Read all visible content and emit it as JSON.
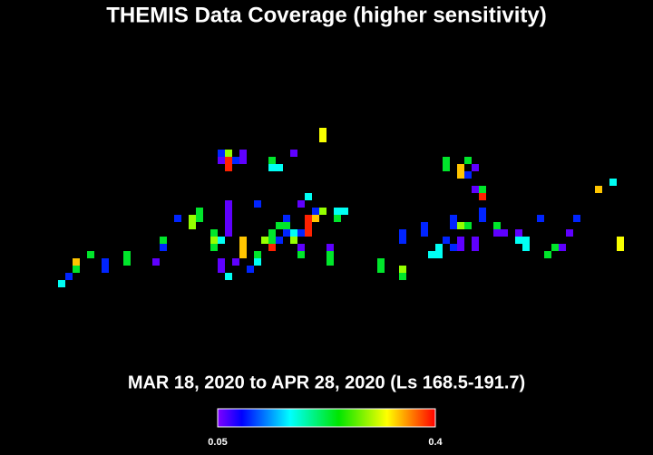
{
  "chart_data": {
    "type": "heatmap",
    "title": "THEMIS Data Coverage (higher sensitivity)",
    "subtitle": "MAR 18, 2020 to APR 28, 2020 (Ls 168.5-191.7)",
    "columns": [
      0,
      1,
      2,
      2,
      4,
      6,
      6,
      9,
      9,
      13,
      14,
      14,
      16,
      18,
      18,
      19,
      19,
      21,
      21,
      21,
      22,
      22,
      23,
      23,
      23,
      24,
      25,
      25,
      23,
      23,
      23,
      23,
      23,
      22,
      22,
      22,
      23,
      24,
      25,
      25,
      25,
      26,
      27,
      27,
      27,
      28,
      29,
      29,
      29,
      30,
      29,
      29,
      30,
      30,
      31,
      31,
      31,
      32,
      32,
      32,
      33,
      33,
      33,
      33,
      34,
      34,
      34,
      34,
      35,
      35,
      36,
      36,
      36,
      37,
      37,
      37,
      38,
      38,
      39,
      44,
      44,
      47,
      47,
      47,
      47,
      50,
      50,
      51,
      52,
      52,
      53,
      53,
      53,
      54,
      54,
      54,
      55,
      55,
      55,
      55,
      55,
      56,
      56,
      56,
      57,
      57,
      57,
      57,
      58,
      58,
      58,
      58,
      60,
      60,
      61,
      63,
      63,
      64,
      64,
      66,
      67,
      68,
      69,
      70,
      71,
      74,
      76,
      77,
      77
    ],
    "rows": [
      21,
      20,
      18,
      19,
      17,
      18,
      19,
      17,
      18,
      18,
      15,
      16,
      12,
      12,
      13,
      11,
      12,
      14,
      15,
      16,
      3,
      4,
      3,
      4,
      5,
      4,
      3,
      4,
      10,
      11,
      12,
      13,
      14,
      15,
      18,
      19,
      20,
      18,
      15,
      16,
      17,
      19,
      10,
      17,
      18,
      15,
      16,
      4,
      5,
      5,
      14,
      15,
      15,
      13,
      12,
      13,
      14,
      3,
      14,
      15,
      10,
      16,
      17,
      14,
      9,
      12,
      13,
      14,
      11,
      12,
      0,
      1,
      11,
      16,
      17,
      18,
      12,
      11,
      11,
      18,
      19,
      14,
      15,
      19,
      20,
      13,
      14,
      17,
      16,
      17,
      4,
      5,
      15,
      12,
      13,
      16,
      5,
      6,
      13,
      15,
      16,
      4,
      6,
      13,
      5,
      8,
      15,
      16,
      8,
      9,
      11,
      12,
      13,
      14,
      14,
      14,
      15,
      15,
      16,
      12,
      17,
      16,
      16,
      14,
      12,
      8,
      7,
      15,
      16
    ],
    "values": [
      0.17,
      0.1,
      0.34,
      0.23,
      0.23,
      0.1,
      0.1,
      0.23,
      0.23,
      0.06,
      0.23,
      0.1,
      0.1,
      0.29,
      0.29,
      0.23,
      0.23,
      0.23,
      0.29,
      0.23,
      0.1,
      0.06,
      0.29,
      0.39,
      0.39,
      0.1,
      0.06,
      0.06,
      0.06,
      0.06,
      0.06,
      0.06,
      0.06,
      0.17,
      0.06,
      0.06,
      0.17,
      0.06,
      0.34,
      0.34,
      0.34,
      0.1,
      0.1,
      0.23,
      0.17,
      0.29,
      0.39,
      0.23,
      0.17,
      0.17,
      0.23,
      0.23,
      0.1,
      0.23,
      0.1,
      0.23,
      0.1,
      0.06,
      0.17,
      0.29,
      0.06,
      0.06,
      0.23,
      0.1,
      0.17,
      0.39,
      0.39,
      0.39,
      0.1,
      0.34,
      0.32,
      0.32,
      0.29,
      0.06,
      0.23,
      0.23,
      0.23,
      0.17,
      0.17,
      0.23,
      0.23,
      0.1,
      0.1,
      0.29,
      0.23,
      0.1,
      0.1,
      0.17,
      0.17,
      0.17,
      0.23,
      0.23,
      0.1,
      0.1,
      0.1,
      0.1,
      0.34,
      0.34,
      0.29,
      0.06,
      0.06,
      0.23,
      0.1,
      0.23,
      0.06,
      0.06,
      0.06,
      0.06,
      0.23,
      0.39,
      0.1,
      0.1,
      0.23,
      0.06,
      0.06,
      0.06,
      0.17,
      0.17,
      0.17,
      0.1,
      0.23,
      0.23,
      0.06,
      0.06,
      0.1,
      0.34,
      0.17,
      0.32,
      0.32
    ],
    "colorbar": {
      "lim": [
        0.05,
        0.4
      ],
      "ticks": [
        0.05,
        0.4
      ]
    }
  }
}
